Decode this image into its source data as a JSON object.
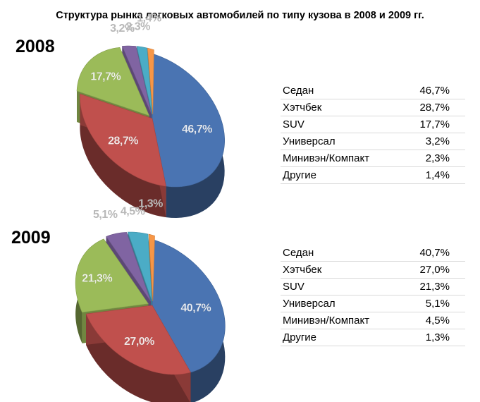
{
  "title": "Структура рынка легковых автомобилей по типу кузова в 2008 и 2009 гг.",
  "colors": {
    "Седан": "#4a74b2",
    "Хэтчбек": "#c0504d",
    "SUV": "#9bbb59",
    "Универсал": "#8064a2",
    "Минивэн/Компакт": "#4bacc6",
    "Другие": "#f79646"
  },
  "chart_data": [
    {
      "type": "pie",
      "year_label": "2008",
      "categories": [
        "Седан",
        "Хэтчбек",
        "SUV",
        "Универсал",
        "Минивэн/Компакт",
        "Другие"
      ],
      "values": [
        46.7,
        28.7,
        17.7,
        3.2,
        2.3,
        1.4
      ],
      "value_labels": [
        "46,7%",
        "28,7%",
        "17,7%",
        "3,2%",
        "2,3%",
        "1,4%"
      ],
      "table": [
        {
          "label": "Седан",
          "value": "46,7%"
        },
        {
          "label": "Хэтчбек",
          "value": "28,7%"
        },
        {
          "label": "SUV",
          "value": "17,7%"
        },
        {
          "label": "Универсал",
          "value": "3,2%"
        },
        {
          "label": "Минивэн/Компакт",
          "value": "2,3%"
        },
        {
          "label": "Другие",
          "value": "1,4%"
        }
      ]
    },
    {
      "type": "pie",
      "year_label": "2009",
      "categories": [
        "Седан",
        "Хэтчбек",
        "SUV",
        "Универсал",
        "Минивэн/Компакт",
        "Другие"
      ],
      "values": [
        40.7,
        27.0,
        21.3,
        5.1,
        4.5,
        1.3
      ],
      "value_labels": [
        "40,7%",
        "27,0%",
        "21,3%",
        "5,1%",
        "4,5%",
        "1,3%"
      ],
      "table": [
        {
          "label": "Седан",
          "value": "40,7%"
        },
        {
          "label": "Хэтчбек",
          "value": "27,0%"
        },
        {
          "label": "SUV",
          "value": "21,3%"
        },
        {
          "label": "Универсал",
          "value": "5,1%"
        },
        {
          "label": "Минивэн/Компакт",
          "value": "4,5%"
        },
        {
          "label": "Другие",
          "value": "1,3%"
        }
      ]
    }
  ]
}
